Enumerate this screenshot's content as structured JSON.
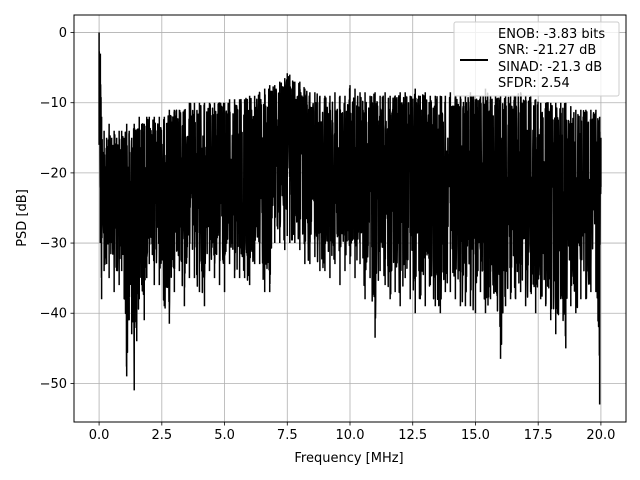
{
  "chart_data": {
    "type": "line",
    "title": "",
    "xlabel": "Frequency [MHz]",
    "ylabel": "PSD [dB]",
    "xlim": [
      -1.0,
      21.0
    ],
    "ylim": [
      -55.5,
      2.5
    ],
    "x_ticks": [
      0.0,
      2.5,
      5.0,
      7.5,
      10.0,
      12.5,
      15.0,
      17.5,
      20.0
    ],
    "x_tick_labels": [
      "0.0",
      "2.5",
      "5.0",
      "7.5",
      "10.0",
      "12.5",
      "15.0",
      "17.5",
      "20.0"
    ],
    "y_ticks": [
      0,
      -10,
      -20,
      -30,
      -40,
      -50
    ],
    "y_tick_labels": [
      "0",
      "−10",
      "−20",
      "−30",
      "−40",
      "−50"
    ],
    "grid": true,
    "legend_position": "top-right",
    "legend": [
      "ENOB: -3.83 bits",
      "SNR: -21.27 dB",
      "SINAD: -21.3 dB",
      "SFDR: 2.54"
    ],
    "series": [
      {
        "color": "#000000",
        "x": [
          0.0,
          0.05,
          0.1,
          0.15,
          0.2,
          0.3,
          0.4,
          0.5,
          0.6,
          0.7,
          0.8,
          0.9,
          1.0,
          1.1,
          1.2,
          1.3,
          1.4,
          1.5,
          1.6,
          1.7,
          1.8,
          1.9,
          2.0,
          2.2,
          2.4,
          2.6,
          2.8,
          3.0,
          3.2,
          3.4,
          3.6,
          3.8,
          4.0,
          4.2,
          4.4,
          4.6,
          4.8,
          5.0,
          5.2,
          5.4,
          5.6,
          5.8,
          6.0,
          6.2,
          6.4,
          6.6,
          6.8,
          7.0,
          7.2,
          7.4,
          7.5,
          7.6,
          7.8,
          8.0,
          8.2,
          8.4,
          8.6,
          8.8,
          9.0,
          9.2,
          9.4,
          9.6,
          9.8,
          10.0,
          10.2,
          10.4,
          10.6,
          10.8,
          11.0,
          11.2,
          11.4,
          11.6,
          11.8,
          12.0,
          12.2,
          12.4,
          12.6,
          12.8,
          13.0,
          13.2,
          13.4,
          13.6,
          13.8,
          14.0,
          14.2,
          14.4,
          14.6,
          14.8,
          15.0,
          15.2,
          15.4,
          15.6,
          15.8,
          16.0,
          16.2,
          16.4,
          16.6,
          16.8,
          17.0,
          17.2,
          17.4,
          17.6,
          17.8,
          18.0,
          18.2,
          18.4,
          18.6,
          18.8,
          19.0,
          19.2,
          19.4,
          19.6,
          19.8,
          19.95,
          20.0
        ],
        "upper": [
          0.0,
          -3.0,
          -12.0,
          -17.0,
          -14.0,
          -15.0,
          -13.0,
          -15.0,
          -14.0,
          -15.0,
          -14.0,
          -14.0,
          -15.0,
          -13.0,
          -14.0,
          -15.0,
          -13.0,
          -14.0,
          -12.0,
          -13.0,
          -13.0,
          -12.0,
          -12.0,
          -12.0,
          -12.0,
          -12.0,
          -11.0,
          -11.0,
          -11.0,
          -11.0,
          -10.0,
          -10.0,
          -10.0,
          -10.0,
          -10.0,
          -10.0,
          -10.0,
          -10.0,
          -9.5,
          -9.5,
          -9.5,
          -9.5,
          -9.0,
          -9.0,
          -8.5,
          -8.0,
          -7.5,
          -7.5,
          -7.0,
          -6.5,
          -5.8,
          -6.0,
          -7.0,
          -7.0,
          -8.0,
          -8.5,
          -8.5,
          -9.0,
          -9.0,
          -9.0,
          -8.5,
          -9.0,
          -9.0,
          -7.5,
          -8.0,
          -8.5,
          -8.5,
          -9.0,
          -8.5,
          -9.0,
          -8.5,
          -9.0,
          -9.0,
          -8.5,
          -8.5,
          -9.0,
          -8.0,
          -9.0,
          -8.5,
          -9.0,
          -9.0,
          -9.0,
          -9.0,
          -8.5,
          -9.0,
          -9.0,
          -9.0,
          -8.5,
          -9.5,
          -9.0,
          -8.0,
          -9.0,
          -9.0,
          -9.0,
          -9.0,
          -9.0,
          -9.0,
          -8.5,
          -9.0,
          -9.0,
          -9.5,
          -10.0,
          -10.0,
          -10.0,
          -10.0,
          -10.0,
          -10.0,
          -10.5,
          -11.0,
          -11.0,
          -11.0,
          -11.0,
          -11.0,
          -12.0,
          -15.0
        ],
        "lower": [
          -16.0,
          -30.0,
          -38.0,
          -27.0,
          -34.0,
          -33.0,
          -35.0,
          -30.0,
          -37.0,
          -34.0,
          -36.0,
          -34.0,
          -38.0,
          -49.0,
          -41.0,
          -43.0,
          -51.0,
          -44.0,
          -38.0,
          -36.0,
          -41.0,
          -35.0,
          -33.0,
          -36.0,
          -36.0,
          -39.0,
          -41.5,
          -37.0,
          -34.0,
          -39.0,
          -35.0,
          -35.0,
          -37.0,
          -39.0,
          -34.0,
          -35.0,
          -36.0,
          -37.0,
          -33.0,
          -35.0,
          -35.0,
          -35.0,
          -36.0,
          -33.0,
          -33.0,
          -37.0,
          -37.0,
          -30.0,
          -30.0,
          -31.0,
          -29.0,
          -30.0,
          -30.0,
          -31.0,
          -33.0,
          -33.0,
          -32.0,
          -34.0,
          -34.0,
          -35.0,
          -33.0,
          -36.0,
          -34.0,
          -33.0,
          -35.0,
          -33.0,
          -38.0,
          -35.0,
          -43.5,
          -34.0,
          -36.0,
          -38.0,
          -37.0,
          -39.0,
          -35.0,
          -38.0,
          -40.0,
          -38.0,
          -39.0,
          -36.0,
          -39.0,
          -40.0,
          -37.0,
          -37.0,
          -38.0,
          -39.0,
          -39.0,
          -39.0,
          -40.0,
          -37.0,
          -40.0,
          -38.0,
          -37.0,
          -46.5,
          -39.0,
          -38.0,
          -38.0,
          -37.0,
          -39.0,
          -37.0,
          -40.0,
          -38.0,
          -39.0,
          -41.0,
          -43.0,
          -38.0,
          -45.0,
          -39.0,
          -40.0,
          -38.0,
          -38.0,
          -37.0,
          -37.0,
          -53.0,
          -22.0
        ]
      }
    ]
  }
}
